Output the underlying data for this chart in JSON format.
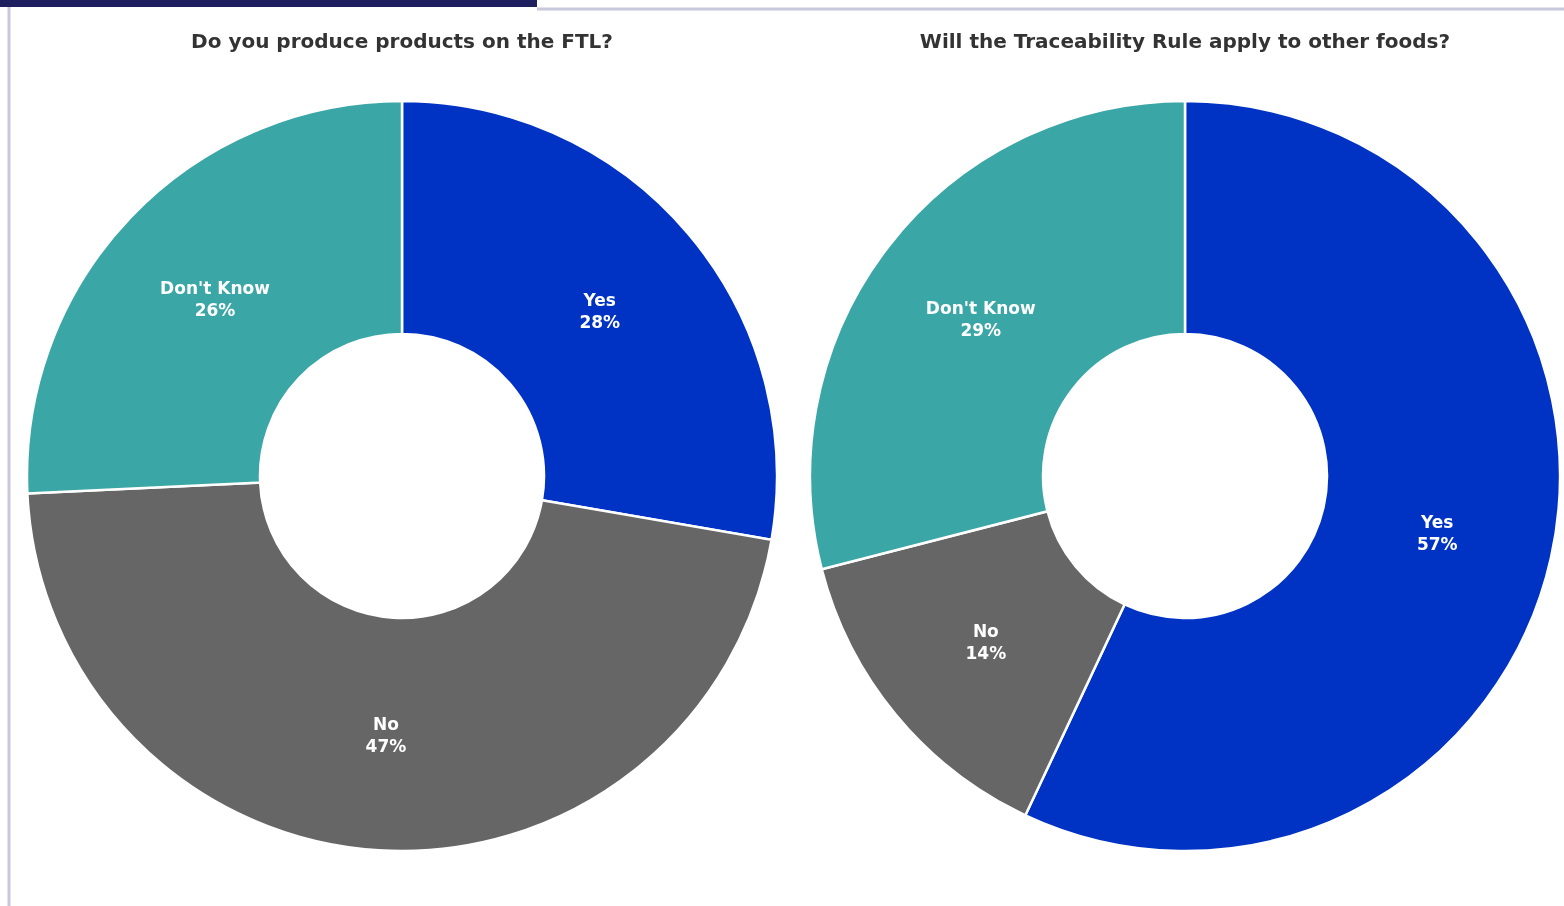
{
  "chart_data": [
    {
      "type": "donut",
      "title": "Do you produce products on the FTL?",
      "categories": [
        "Yes",
        "No",
        "Don't Know"
      ],
      "values": [
        28,
        47,
        26
      ],
      "colors": [
        "#0033c4",
        "#666666",
        "#3aa6a6"
      ],
      "value_labels": [
        "28%",
        "47%",
        "26%"
      ]
    },
    {
      "type": "donut",
      "title": "Will the Traceability Rule apply to other foods?",
      "categories": [
        "Yes",
        "No",
        "Don't Know"
      ],
      "values": [
        57,
        14,
        29
      ],
      "colors": [
        "#0033c4",
        "#666666",
        "#3aa6a6"
      ],
      "value_labels": [
        "57%",
        "14%",
        "29%"
      ]
    }
  ]
}
